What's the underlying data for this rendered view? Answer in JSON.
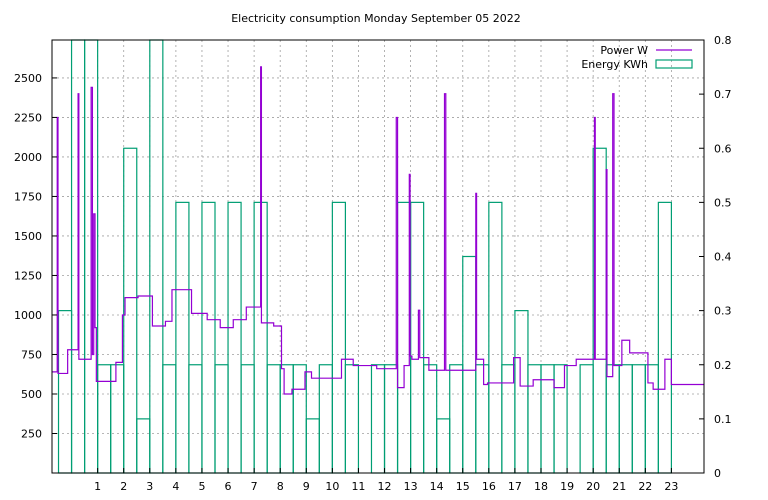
{
  "chart_data": {
    "type": "line",
    "title": "Electricity consumption Monday September 05 2022",
    "grid": true,
    "legend_position": "top-right",
    "x_ticks": [
      "1",
      "2",
      "3",
      "4",
      "5",
      "6",
      "7",
      "8",
      "9",
      "10",
      "11",
      "12",
      "13",
      "14",
      "15",
      "16",
      "17",
      "18",
      "19",
      "20",
      "21",
      "22",
      "23"
    ],
    "xlim": [
      -0.75,
      24.25
    ],
    "y_left_ticks": [
      "250",
      "500",
      "750",
      "1000",
      "1250",
      "1500",
      "1750",
      "2000",
      "2250",
      "2500"
    ],
    "ylim_left": [
      0,
      2740
    ],
    "y_right_ticks": [
      "0",
      "0.1",
      "0.2",
      "0.3",
      "0.4",
      "0.5",
      "0.6",
      "0.7",
      "0.8"
    ],
    "ylim_right": [
      0,
      0.8
    ],
    "colors": {
      "power": "#9400d3",
      "energy": "#009e73"
    },
    "series": [
      {
        "name": "Power W",
        "axis": "left",
        "points": [
          [
            -0.75,
            640
          ],
          [
            -0.55,
            640
          ],
          [
            -0.55,
            2250
          ],
          [
            -0.52,
            2250
          ],
          [
            -0.52,
            630
          ],
          [
            -0.15,
            630
          ],
          [
            -0.15,
            780
          ],
          [
            0.25,
            780
          ],
          [
            0.25,
            2400
          ],
          [
            0.28,
            2400
          ],
          [
            0.28,
            720
          ],
          [
            0.75,
            720
          ],
          [
            0.75,
            2440
          ],
          [
            0.8,
            2440
          ],
          [
            0.8,
            750
          ],
          [
            0.85,
            750
          ],
          [
            0.85,
            1640
          ],
          [
            0.9,
            1640
          ],
          [
            0.9,
            920
          ],
          [
            0.95,
            920
          ],
          [
            0.95,
            580
          ],
          [
            1.7,
            580
          ],
          [
            1.7,
            700
          ],
          [
            1.95,
            700
          ],
          [
            1.95,
            1000
          ],
          [
            2.05,
            1000
          ],
          [
            2.05,
            1110
          ],
          [
            2.55,
            1110
          ],
          [
            2.55,
            1120
          ],
          [
            3.1,
            1120
          ],
          [
            3.1,
            930
          ],
          [
            3.6,
            930
          ],
          [
            3.6,
            960
          ],
          [
            3.85,
            960
          ],
          [
            3.85,
            1160
          ],
          [
            4.6,
            1160
          ],
          [
            4.6,
            1010
          ],
          [
            5.2,
            1010
          ],
          [
            5.2,
            970
          ],
          [
            5.7,
            970
          ],
          [
            5.7,
            920
          ],
          [
            6.2,
            920
          ],
          [
            6.2,
            970
          ],
          [
            6.7,
            970
          ],
          [
            6.7,
            1050
          ],
          [
            7.25,
            1050
          ],
          [
            7.25,
            2570
          ],
          [
            7.28,
            2570
          ],
          [
            7.28,
            950
          ],
          [
            7.75,
            950
          ],
          [
            7.75,
            930
          ],
          [
            8.05,
            930
          ],
          [
            8.05,
            660
          ],
          [
            8.15,
            660
          ],
          [
            8.15,
            500
          ],
          [
            8.45,
            500
          ],
          [
            8.45,
            530
          ],
          [
            8.95,
            530
          ],
          [
            8.95,
            640
          ],
          [
            9.2,
            640
          ],
          [
            9.2,
            600
          ],
          [
            10.35,
            600
          ],
          [
            10.35,
            720
          ],
          [
            10.8,
            720
          ],
          [
            10.8,
            680
          ],
          [
            11.7,
            680
          ],
          [
            11.7,
            660
          ],
          [
            12.45,
            660
          ],
          [
            12.45,
            2250
          ],
          [
            12.5,
            2250
          ],
          [
            12.5,
            540
          ],
          [
            12.75,
            540
          ],
          [
            12.75,
            680
          ],
          [
            12.95,
            680
          ],
          [
            12.95,
            1890
          ],
          [
            12.98,
            1890
          ],
          [
            12.98,
            740
          ],
          [
            13.05,
            740
          ],
          [
            13.05,
            720
          ],
          [
            13.3,
            720
          ],
          [
            13.3,
            1030
          ],
          [
            13.35,
            1030
          ],
          [
            13.35,
            730
          ],
          [
            13.7,
            730
          ],
          [
            13.7,
            650
          ],
          [
            14.3,
            650
          ],
          [
            14.3,
            2400
          ],
          [
            14.35,
            2400
          ],
          [
            14.35,
            650
          ],
          [
            15.5,
            650
          ],
          [
            15.5,
            1770
          ],
          [
            15.53,
            1770
          ],
          [
            15.53,
            720
          ],
          [
            15.8,
            720
          ],
          [
            15.8,
            560
          ],
          [
            15.95,
            560
          ],
          [
            15.95,
            570
          ],
          [
            16.95,
            570
          ],
          [
            16.95,
            730
          ],
          [
            17.2,
            730
          ],
          [
            17.2,
            550
          ],
          [
            17.7,
            550
          ],
          [
            17.7,
            590
          ],
          [
            18.5,
            590
          ],
          [
            18.5,
            540
          ],
          [
            18.9,
            540
          ],
          [
            18.9,
            680
          ],
          [
            19.35,
            680
          ],
          [
            19.35,
            720
          ],
          [
            20.05,
            720
          ],
          [
            20.05,
            2250
          ],
          [
            20.08,
            2250
          ],
          [
            20.08,
            720
          ],
          [
            20.5,
            720
          ],
          [
            20.5,
            1920
          ],
          [
            20.53,
            1920
          ],
          [
            20.53,
            610
          ],
          [
            20.75,
            610
          ],
          [
            20.75,
            2400
          ],
          [
            20.8,
            2400
          ],
          [
            20.8,
            680
          ],
          [
            21.1,
            680
          ],
          [
            21.1,
            840
          ],
          [
            21.4,
            840
          ],
          [
            21.4,
            760
          ],
          [
            22.1,
            760
          ],
          [
            22.1,
            570
          ],
          [
            22.3,
            570
          ],
          [
            22.3,
            530
          ],
          [
            22.75,
            530
          ],
          [
            22.75,
            720
          ],
          [
            23.0,
            720
          ],
          [
            23.0,
            560
          ],
          [
            24.25,
            560
          ]
        ]
      },
      {
        "name": "Energy KWh",
        "axis": "right",
        "bars": [
          [
            -0.5,
            0.3
          ],
          [
            0.0,
            0.8
          ],
          [
            0.5,
            0.8
          ],
          [
            1.0,
            0.2
          ],
          [
            1.5,
            0.2
          ],
          [
            2.0,
            0.6
          ],
          [
            2.5,
            0.1
          ],
          [
            3.0,
            0.8
          ],
          [
            3.5,
            0.2
          ],
          [
            4.0,
            0.5
          ],
          [
            4.5,
            0.2
          ],
          [
            5.0,
            0.5
          ],
          [
            5.5,
            0.2
          ],
          [
            6.0,
            0.5
          ],
          [
            6.5,
            0.2
          ],
          [
            7.0,
            0.5
          ],
          [
            7.5,
            0.2
          ],
          [
            8.0,
            0.2
          ],
          [
            8.5,
            0.2
          ],
          [
            9.0,
            0.1
          ],
          [
            9.5,
            0.2
          ],
          [
            10.0,
            0.5
          ],
          [
            10.5,
            0.2
          ],
          [
            11.5,
            0.2
          ],
          [
            12.0,
            0.2
          ],
          [
            12.5,
            0.5
          ],
          [
            13.0,
            0.5
          ],
          [
            13.5,
            0.2
          ],
          [
            14.0,
            0.1
          ],
          [
            14.5,
            0.2
          ],
          [
            15.0,
            0.4
          ],
          [
            15.5,
            0.2
          ],
          [
            16.0,
            0.5
          ],
          [
            16.5,
            0.2
          ],
          [
            17.0,
            0.3
          ],
          [
            17.5,
            0.2
          ],
          [
            18.0,
            0.2
          ],
          [
            18.5,
            0.2
          ],
          [
            19.5,
            0.2
          ],
          [
            20.0,
            0.6
          ],
          [
            20.5,
            0.2
          ],
          [
            21.0,
            0.2
          ],
          [
            21.5,
            0.2
          ],
          [
            22.0,
            0.2
          ],
          [
            22.5,
            0.5
          ]
        ]
      }
    ]
  }
}
